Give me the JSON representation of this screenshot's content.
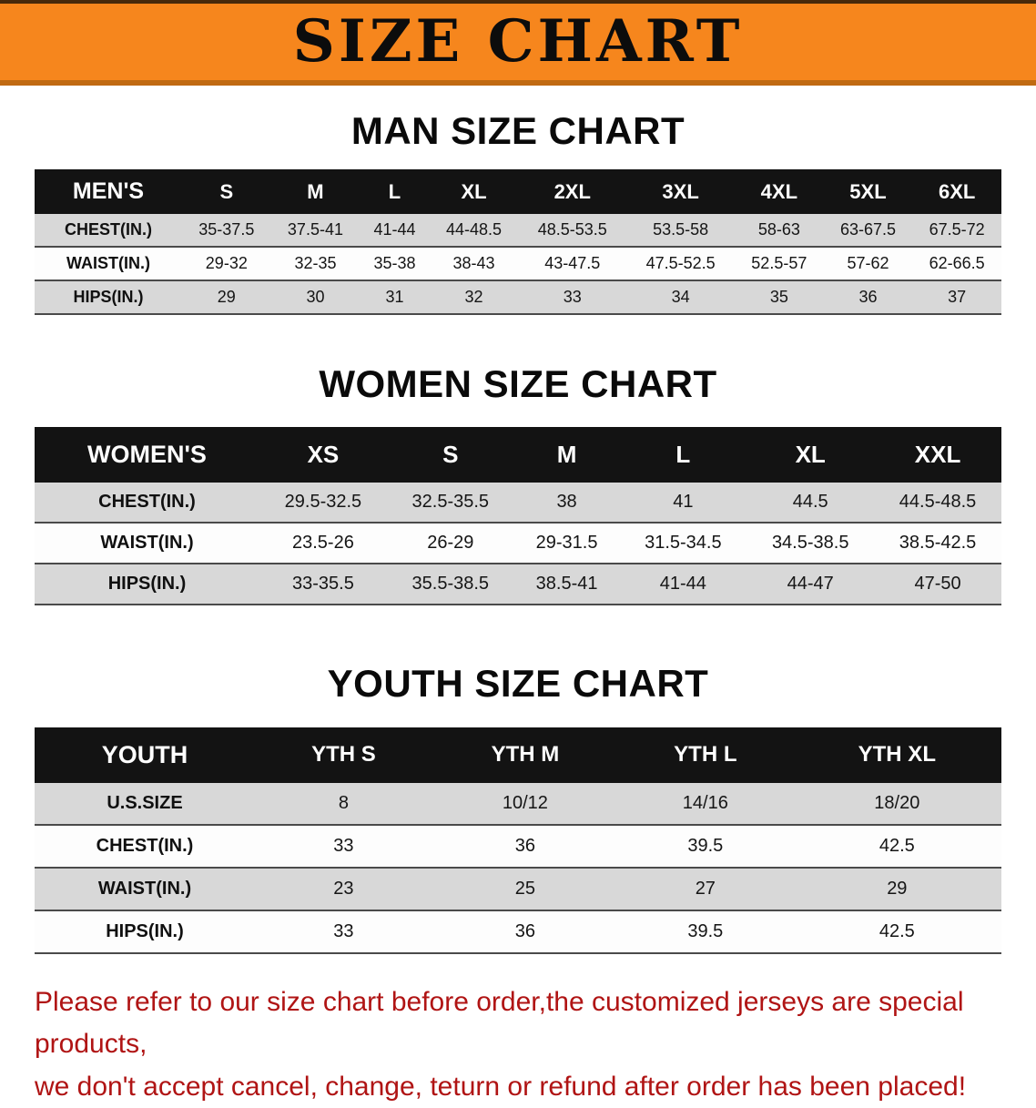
{
  "banner": {
    "title": "SIZE CHART"
  },
  "sections": [
    {
      "id": "men",
      "title": "MAN SIZE CHART",
      "table": {
        "header": [
          "MEN'S",
          "S",
          "M",
          "L",
          "XL",
          "2XL",
          "3XL",
          "4XL",
          "5XL",
          "6XL"
        ],
        "rows": [
          [
            "CHEST(IN.)",
            "35-37.5",
            "37.5-41",
            "41-44",
            "44-48.5",
            "48.5-53.5",
            "53.5-58",
            "58-63",
            "63-67.5",
            "67.5-72"
          ],
          [
            "WAIST(IN.)",
            "29-32",
            "32-35",
            "35-38",
            "38-43",
            "43-47.5",
            "47.5-52.5",
            "52.5-57",
            "57-62",
            "62-66.5"
          ],
          [
            "HIPS(IN.)",
            "29",
            "30",
            "31",
            "32",
            "33",
            "34",
            "35",
            "36",
            "37"
          ]
        ]
      }
    },
    {
      "id": "women",
      "title": "WOMEN SIZE CHART",
      "table": {
        "header": [
          "WOMEN'S",
          "XS",
          "S",
          "M",
          "L",
          "XL",
          "XXL"
        ],
        "rows": [
          [
            "CHEST(IN.)",
            "29.5-32.5",
            "32.5-35.5",
            "38",
            "41",
            "44.5",
            "44.5-48.5"
          ],
          [
            "WAIST(IN.)",
            "23.5-26",
            "26-29",
            "29-31.5",
            "31.5-34.5",
            "34.5-38.5",
            "38.5-42.5"
          ],
          [
            "HIPS(IN.)",
            "33-35.5",
            "35.5-38.5",
            "38.5-41",
            "41-44",
            "44-47",
            "47-50"
          ]
        ]
      }
    },
    {
      "id": "youth",
      "title": "YOUTH SIZE CHART",
      "table": {
        "header": [
          "YOUTH",
          "YTH S",
          "YTH M",
          "YTH L",
          "YTH XL"
        ],
        "rows": [
          [
            "U.S.SIZE",
            "8",
            "10/12",
            "14/16",
            "18/20"
          ],
          [
            "CHEST(IN.)",
            "33",
            "36",
            "39.5",
            "42.5"
          ],
          [
            "WAIST(IN.)",
            "23",
            "25",
            "27",
            "29"
          ],
          [
            "HIPS(IN.)",
            "33",
            "36",
            "39.5",
            "42.5"
          ]
        ]
      }
    }
  ],
  "footer": {
    "line1": "Please refer to our size chart before order,the customized jerseys are special products,",
    "line2": "we don't accept cancel, change, teturn or refund after order has been placed!"
  },
  "colors": {
    "banner_orange": "#f6861d",
    "table_header_black": "#131313",
    "row_gray": "#d8d8d8",
    "footer_red": "#b01414"
  }
}
